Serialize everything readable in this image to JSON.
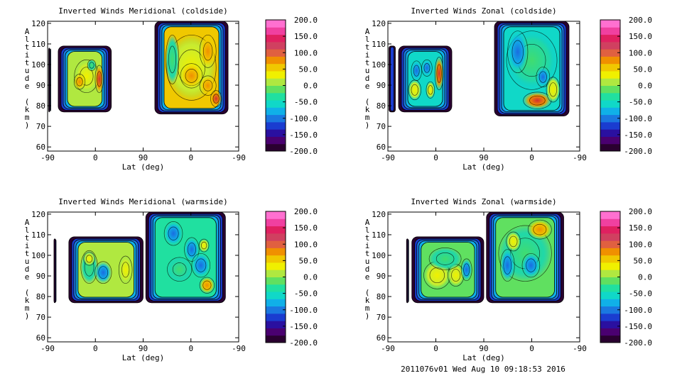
{
  "footer": "2011076v01 Wed Aug 10 09:18:53 2016",
  "colorbar": {
    "ticks": [
      "200.0",
      "150.0",
      "100.0",
      "50.0",
      "0.0",
      "-50.0",
      "-100.0",
      "-150.0",
      "-200.0"
    ],
    "range": [
      -200,
      200
    ],
    "colors": [
      "#2a0030",
      "#4a0070",
      "#2a10a0",
      "#1a3cd0",
      "#1a78e0",
      "#10b0e8",
      "#10d8c8",
      "#20e0a0",
      "#60e060",
      "#b0e840",
      "#f0f000",
      "#f0c800",
      "#f09000",
      "#e06040",
      "#d04060",
      "#e02060",
      "#f040a0",
      "#ff70d0"
    ]
  },
  "chart_data": [
    {
      "type": "heatmap",
      "title": "Inverted Winds Meridional (coldside)",
      "xlabel": "Lat (deg)",
      "ylabel": "Altitude (km)",
      "x_ticks": [
        "-90",
        "0",
        "90",
        "0",
        "-90"
      ],
      "y_ticks": [
        "60",
        "70",
        "80",
        "90",
        "100",
        "110",
        "120"
      ],
      "ylim": [
        58,
        121
      ],
      "scale": "Meridional wind, -200.0 to 200.0",
      "regions": [
        {
          "x_range": [
            -88,
            -86
          ],
          "alt_range": [
            77,
            108
          ],
          "value": -150
        },
        {
          "x_range": [
            -70,
            30
          ],
          "alt_range": [
            77,
            109
          ],
          "value": 20
        },
        {
          "x_range": [
            112,
            250
          ],
          "alt_range": [
            76,
            121
          ],
          "value": 45
        }
      ]
    },
    {
      "type": "heatmap",
      "title": "Inverted Winds Zonal (coldside)",
      "xlabel": "Lat (deg)",
      "ylabel": "Altitude (km)",
      "x_ticks": [
        "-90",
        "0",
        "90",
        "0",
        "-90"
      ],
      "y_ticks": [
        "60",
        "70",
        "80",
        "90",
        "100",
        "110",
        "120"
      ],
      "ylim": [
        58,
        121
      ],
      "scale": "Zonal wind, -200.0 to 200.0",
      "regions": [
        {
          "x_range": [
            -88,
            -76
          ],
          "alt_range": [
            77,
            109
          ],
          "value": -150
        },
        {
          "x_range": [
            -70,
            30
          ],
          "alt_range": [
            77,
            109
          ],
          "value": -50
        },
        {
          "x_range": [
            110,
            250
          ],
          "alt_range": [
            75,
            121
          ],
          "value": -60
        }
      ]
    },
    {
      "type": "heatmap",
      "title": "Inverted Winds Meridional (warmside)",
      "xlabel": "Lat (deg)",
      "ylabel": "Altitude (km)",
      "x_ticks": [
        "-90",
        "0",
        "90",
        "0",
        "-90"
      ],
      "y_ticks": [
        "60",
        "70",
        "80",
        "90",
        "100",
        "110",
        "120"
      ],
      "ylim": [
        58,
        121
      ],
      "scale": "Meridional wind, -200.0 to 200.0",
      "regions": [
        {
          "x_range": [
            -78,
            -75
          ],
          "alt_range": [
            77,
            108
          ],
          "value": -170
        },
        {
          "x_range": [
            -50,
            90
          ],
          "alt_range": [
            77,
            109
          ],
          "value": 0
        },
        {
          "x_range": [
            95,
            245
          ],
          "alt_range": [
            77,
            121
          ],
          "value": -30
        }
      ]
    },
    {
      "type": "heatmap",
      "title": "Inverted Winds Zonal (warmside)",
      "xlabel": "Lat (deg)",
      "ylabel": "Altitude (km)",
      "x_ticks": [
        "-90",
        "0",
        "90",
        "0",
        "-90"
      ],
      "y_ticks": [
        "60",
        "70",
        "80",
        "90",
        "100",
        "110",
        "120"
      ],
      "ylim": [
        58,
        121
      ],
      "scale": "Zonal wind, -200.0 to 200.0",
      "regions": [
        {
          "x_range": [
            -55,
            -52
          ],
          "alt_range": [
            77,
            108
          ],
          "value": -170
        },
        {
          "x_range": [
            -45,
            90
          ],
          "alt_range": [
            77,
            109
          ],
          "value": -10
        },
        {
          "x_range": [
            95,
            240
          ],
          "alt_range": [
            77,
            121
          ],
          "value": -20
        }
      ]
    }
  ]
}
